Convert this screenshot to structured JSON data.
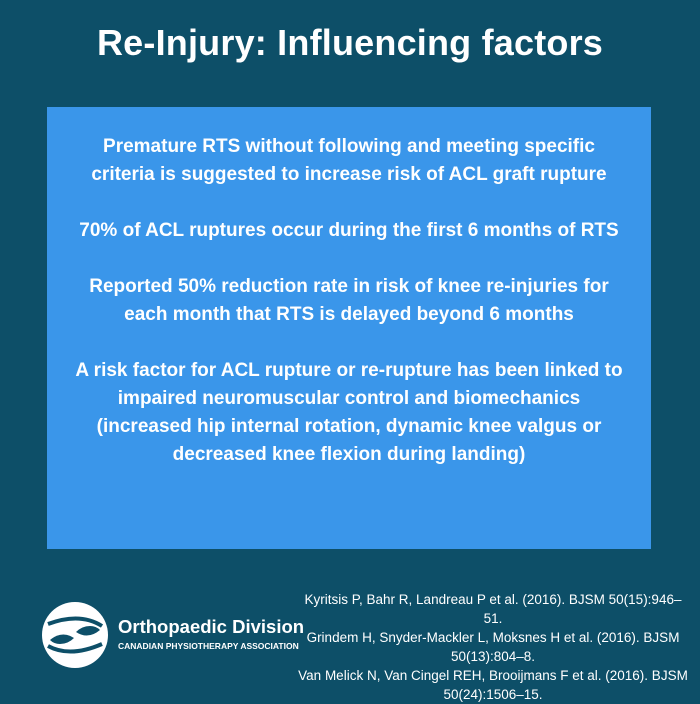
{
  "title": "Re-Injury: Influencing factors",
  "points": [
    "Premature RTS without following and meeting specific criteria is suggested to increase risk of ACL graft rupture",
    "70% of ACL ruptures occur during the first 6 months of RTS",
    "Reported 50% reduction rate in risk of knee re-injuries for each month that RTS is delayed beyond 6 months",
    "A risk factor for ACL rupture or re-rupture has been linked to impaired neuromuscular control and biomechanics (increased hip internal rotation, dynamic knee valgus or decreased knee flexion during landing)"
  ],
  "logo": {
    "name": "Orthopaedic Division",
    "subtitle": "CANADIAN PHYSIOTHERAPY ASSOCIATION",
    "icon": "hands-circle-icon"
  },
  "references": [
    "Kyritsis P, Bahr R, Landreau P et al. (2016). BJSM 50(15):946–51.",
    "Grindem H, Snyder-Mackler L, Moksnes H et al. (2016). BJSM 50(13):804–8.",
    "Van Melick N, Van Cingel REH, Brooijmans F et al. (2016). BJSM 50(24):1506–15."
  ],
  "colors": {
    "background": "#0d4f68",
    "panel": "#3a96ea",
    "text": "#ffffff"
  }
}
